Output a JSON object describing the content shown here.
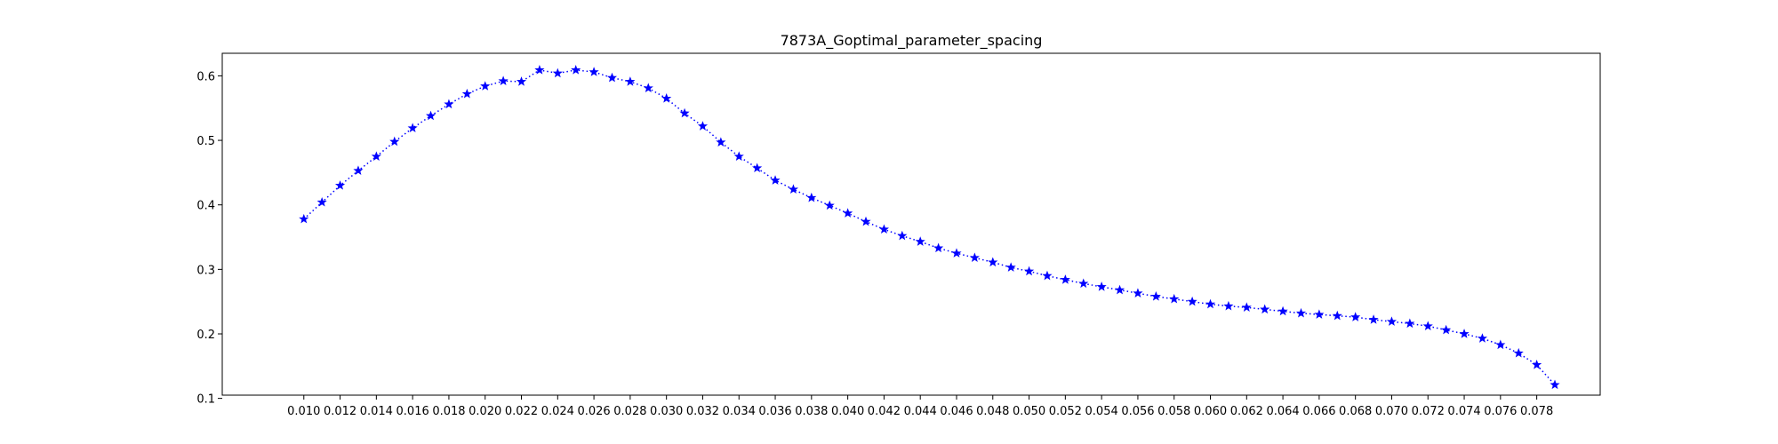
{
  "chart_data": {
    "type": "line",
    "title": "7873A_Goptimal_parameter_spacing",
    "xlabel": "",
    "ylabel": "",
    "xlim": [
      0.0055,
      0.0815
    ],
    "ylim": [
      0.105,
      0.635
    ],
    "x_ticks": [
      "0.010",
      "0.012",
      "0.014",
      "0.016",
      "0.018",
      "0.020",
      "0.022",
      "0.024",
      "0.026",
      "0.028",
      "0.030",
      "0.032",
      "0.034",
      "0.036",
      "0.038",
      "0.040",
      "0.042",
      "0.044",
      "0.046",
      "0.048",
      "0.050",
      "0.052",
      "0.054",
      "0.056",
      "0.058",
      "0.060",
      "0.062",
      "0.064",
      "0.066",
      "0.068",
      "0.070",
      "0.072",
      "0.074",
      "0.076",
      "0.078"
    ],
    "y_ticks": [
      "0.1",
      "0.2",
      "0.3",
      "0.4",
      "0.5",
      "0.6"
    ],
    "grid": false,
    "legend": "none",
    "series": [
      {
        "color": "#0000ff",
        "line_style": "dotted",
        "marker": "star",
        "x": [
          0.01,
          0.011,
          0.012,
          0.013,
          0.014,
          0.015,
          0.016,
          0.017,
          0.018,
          0.019,
          0.02,
          0.021,
          0.022,
          0.023,
          0.024,
          0.025,
          0.026,
          0.027,
          0.028,
          0.029,
          0.03,
          0.031,
          0.032,
          0.033,
          0.034,
          0.035,
          0.036,
          0.037,
          0.038,
          0.039,
          0.04,
          0.041,
          0.042,
          0.043,
          0.044,
          0.045,
          0.046,
          0.047,
          0.048,
          0.049,
          0.05,
          0.051,
          0.052,
          0.053,
          0.054,
          0.055,
          0.056,
          0.057,
          0.058,
          0.059,
          0.06,
          0.061,
          0.062,
          0.063,
          0.064,
          0.065,
          0.066,
          0.067,
          0.068,
          0.069,
          0.07,
          0.071,
          0.072,
          0.073,
          0.074,
          0.075,
          0.076,
          0.077,
          0.078,
          0.079
        ],
        "y": [
          0.378,
          0.404,
          0.43,
          0.453,
          0.475,
          0.498,
          0.519,
          0.538,
          0.556,
          0.572,
          0.584,
          0.592,
          0.591,
          0.609,
          0.604,
          0.609,
          0.606,
          0.597,
          0.591,
          0.581,
          0.565,
          0.542,
          0.522,
          0.497,
          0.475,
          0.457,
          0.438,
          0.424,
          0.411,
          0.399,
          0.387,
          0.374,
          0.362,
          0.352,
          0.343,
          0.333,
          0.325,
          0.318,
          0.311,
          0.303,
          0.297,
          0.29,
          0.284,
          0.278,
          0.273,
          0.268,
          0.263,
          0.258,
          0.254,
          0.25,
          0.246,
          0.243,
          0.241,
          0.238,
          0.235,
          0.232,
          0.23,
          0.228,
          0.226,
          0.222,
          0.219,
          0.216,
          0.212,
          0.206,
          0.2,
          0.193,
          0.183,
          0.17,
          0.152,
          0.121
        ]
      }
    ]
  }
}
